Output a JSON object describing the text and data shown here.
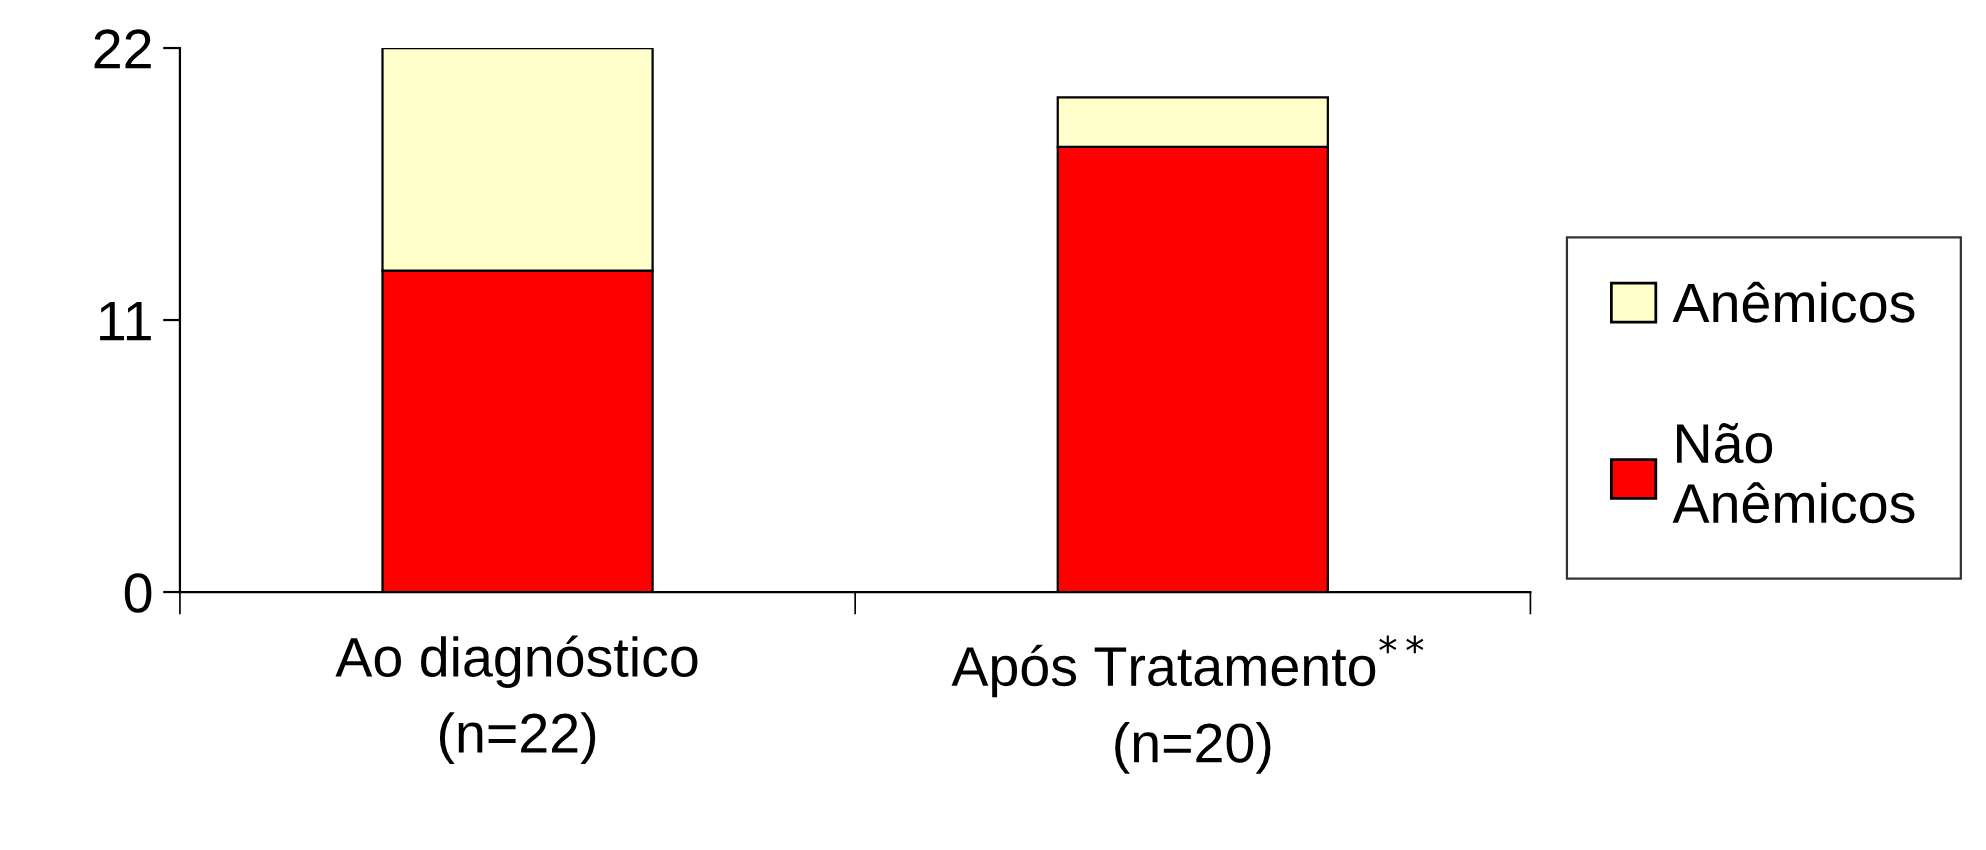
{
  "chart_data": {
    "type": "bar",
    "stacked": true,
    "categories": [
      "Ao diagnóstico\n(n=22)",
      "Após Tratamento$^{**}$\n(n=20)"
    ],
    "series": [
      {
        "name": "Não Anêmicos",
        "color": "#ff0000",
        "values": [
          13,
          18
        ]
      },
      {
        "name": "Anêmicos",
        "color": "#ffffcc",
        "values": [
          9,
          2
        ]
      }
    ],
    "ylim": [
      0,
      22
    ],
    "yticks": [
      0,
      11,
      22
    ],
    "grid": false,
    "legend": "right"
  }
}
